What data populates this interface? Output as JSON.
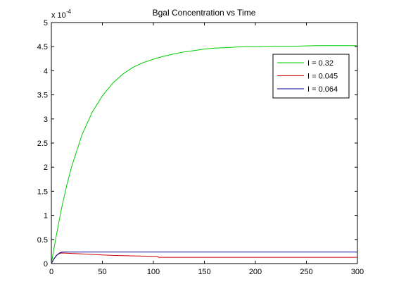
{
  "chart_data": {
    "type": "line",
    "title": "Bgal Concentration vs Time",
    "xlabel": "",
    "ylabel": "",
    "y_multiplier_label": "x 10",
    "y_multiplier_exponent": "-4",
    "xlim": [
      0,
      300
    ],
    "ylim": [
      0,
      5
    ],
    "x_ticks": [
      0,
      50,
      100,
      150,
      200,
      250,
      300
    ],
    "y_ticks": [
      0,
      0.5,
      1,
      1.5,
      2,
      2.5,
      3,
      3.5,
      4,
      4.5,
      5
    ],
    "x_tick_labels": [
      "0",
      "50",
      "100",
      "150",
      "200",
      "250",
      "300"
    ],
    "y_tick_labels": [
      "0",
      "0.5",
      "1",
      "1.5",
      "2",
      "2.5",
      "3",
      "3.5",
      "4",
      "4.5",
      "5"
    ],
    "grid": false,
    "legend_position": "top-right",
    "series": [
      {
        "name": "I = 0.32",
        "color": "#00cc00",
        "x": [
          0,
          2,
          5,
          10,
          15,
          20,
          30,
          40,
          50,
          60,
          70,
          80,
          90,
          100,
          110,
          120,
          130,
          140,
          150,
          160,
          170,
          180,
          190,
          200,
          220,
          240,
          260,
          280,
          300
        ],
        "y": [
          0,
          0.25,
          0.6,
          1.15,
          1.62,
          2.02,
          2.67,
          3.14,
          3.48,
          3.74,
          3.93,
          4.07,
          4.17,
          4.24,
          4.3,
          4.35,
          4.39,
          4.42,
          4.45,
          4.47,
          4.48,
          4.49,
          4.5,
          4.5,
          4.51,
          4.51,
          4.52,
          4.52,
          4.52
        ]
      },
      {
        "name": "I = 0.045",
        "color": "#cc0000",
        "x": [
          0,
          2,
          5,
          8,
          10,
          15,
          20,
          30,
          40,
          50,
          60,
          70,
          80,
          90,
          100,
          104,
          105,
          150,
          200,
          250,
          300
        ],
        "y": [
          0,
          0.08,
          0.17,
          0.21,
          0.22,
          0.215,
          0.21,
          0.2,
          0.19,
          0.18,
          0.17,
          0.165,
          0.16,
          0.155,
          0.15,
          0.15,
          0.13,
          0.13,
          0.13,
          0.13,
          0.13
        ]
      },
      {
        "name": "I = 0.064",
        "color": "#000099",
        "x": [
          0,
          2,
          5,
          8,
          10,
          12,
          15,
          20,
          30,
          50,
          100,
          150,
          200,
          250,
          300
        ],
        "y": [
          0,
          0.08,
          0.17,
          0.22,
          0.235,
          0.24,
          0.24,
          0.24,
          0.24,
          0.24,
          0.24,
          0.24,
          0.24,
          0.24,
          0.24
        ]
      }
    ]
  }
}
